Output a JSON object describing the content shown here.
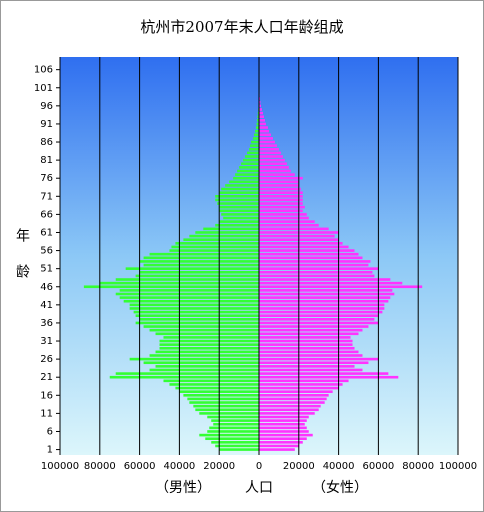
{
  "chart_data": {
    "type": "population_pyramid",
    "title": "杭州市2007年末人口年龄组成",
    "y_label": "年龄",
    "x_label": "人口",
    "x": [
      1,
      2,
      3,
      4,
      5,
      6,
      7,
      8,
      9,
      10,
      11,
      12,
      13,
      14,
      15,
      16,
      17,
      18,
      19,
      20,
      21,
      22,
      23,
      24,
      25,
      26,
      27,
      28,
      29,
      30,
      31,
      32,
      33,
      34,
      35,
      36,
      37,
      38,
      39,
      40,
      41,
      42,
      43,
      44,
      45,
      46,
      47,
      48,
      49,
      50,
      51,
      52,
      53,
      54,
      55,
      56,
      57,
      58,
      59,
      60,
      61,
      62,
      63,
      64,
      65,
      66,
      67,
      68,
      69,
      70,
      71,
      72,
      73,
      74,
      75,
      76,
      77,
      78,
      79,
      80,
      81,
      82,
      83,
      84,
      85,
      86,
      87,
      88,
      89,
      90,
      91,
      92,
      93,
      94,
      95,
      96,
      97,
      98,
      99,
      100
    ],
    "series": [
      {
        "name": "（男性）",
        "color": "#33ff33",
        "values": [
          -20000,
          -22000,
          -24000,
          -27000,
          -30000,
          -26000,
          -25000,
          -23000,
          -24000,
          -26000,
          -30000,
          -32000,
          -33000,
          -35000,
          -36000,
          -38000,
          -40000,
          -42000,
          -45000,
          -48000,
          -75000,
          -72000,
          -55000,
          -52000,
          -58000,
          -65000,
          -55000,
          -52000,
          -50000,
          -50000,
          -50000,
          -48000,
          -52000,
          -55000,
          -58000,
          -62000,
          -60000,
          -62000,
          -63000,
          -65000,
          -65000,
          -68000,
          -70000,
          -72000,
          -70000,
          -88000,
          -80000,
          -72000,
          -62000,
          -60000,
          -67000,
          -58000,
          -60000,
          -58000,
          -55000,
          -45000,
          -44000,
          -42000,
          -38000,
          -35000,
          -32000,
          -28000,
          -22000,
          -20000,
          -18000,
          -19000,
          -20000,
          -20000,
          -21000,
          -22000,
          -22000,
          -20000,
          -19000,
          -17000,
          -15000,
          -13000,
          -12000,
          -11000,
          -10000,
          -9000,
          -8000,
          -7000,
          -6000,
          -5000,
          -4500,
          -4000,
          -3000,
          -2500,
          -2000,
          -1500,
          -1200,
          -1000,
          -800,
          -600,
          -400,
          -300,
          -200,
          -150,
          -100,
          -50
        ]
      },
      {
        "name": "（女性）",
        "color": "#ff33ff",
        "values": [
          18000,
          20000,
          22000,
          24000,
          27000,
          25000,
          24000,
          23000,
          24000,
          25000,
          28000,
          30000,
          31000,
          33000,
          34000,
          35000,
          37000,
          40000,
          42000,
          45000,
          70000,
          65000,
          52000,
          48000,
          55000,
          60000,
          52000,
          50000,
          48000,
          47000,
          47000,
          46000,
          50000,
          52000,
          55000,
          60000,
          58000,
          60000,
          62000,
          63000,
          63000,
          65000,
          66000,
          68000,
          67000,
          82000,
          72000,
          66000,
          58000,
          57000,
          60000,
          55000,
          56000,
          52000,
          50000,
          48000,
          45000,
          42000,
          40000,
          38000,
          40000,
          35000,
          30000,
          28000,
          25000,
          24000,
          22000,
          23000,
          22000,
          22000,
          22000,
          22000,
          21000,
          20000,
          20000,
          22000,
          18000,
          16000,
          15000,
          14000,
          13000,
          12000,
          11000,
          10000,
          9000,
          8000,
          7000,
          6000,
          5000,
          4500,
          3500,
          3000,
          2500,
          2000,
          1500,
          1000,
          700,
          500,
          300,
          200
        ]
      }
    ],
    "xlim": [
      -100000,
      100000
    ],
    "xticks": [
      {
        "value": -100000,
        "label": "100000"
      },
      {
        "value": -80000,
        "label": "80000"
      },
      {
        "value": -60000,
        "label": "60000"
      },
      {
        "value": -40000,
        "label": "40000"
      },
      {
        "value": -20000,
        "label": "20000"
      },
      0,
      20000,
      40000,
      60000,
      80000,
      100000
    ],
    "ylim": [
      -0.5,
      109.5
    ],
    "yticks": [
      1,
      6,
      11,
      16,
      21,
      26,
      31,
      36,
      41,
      46,
      51,
      56,
      61,
      66,
      71,
      76,
      81,
      86,
      91,
      96,
      101,
      106
    ],
    "grid": true
  }
}
